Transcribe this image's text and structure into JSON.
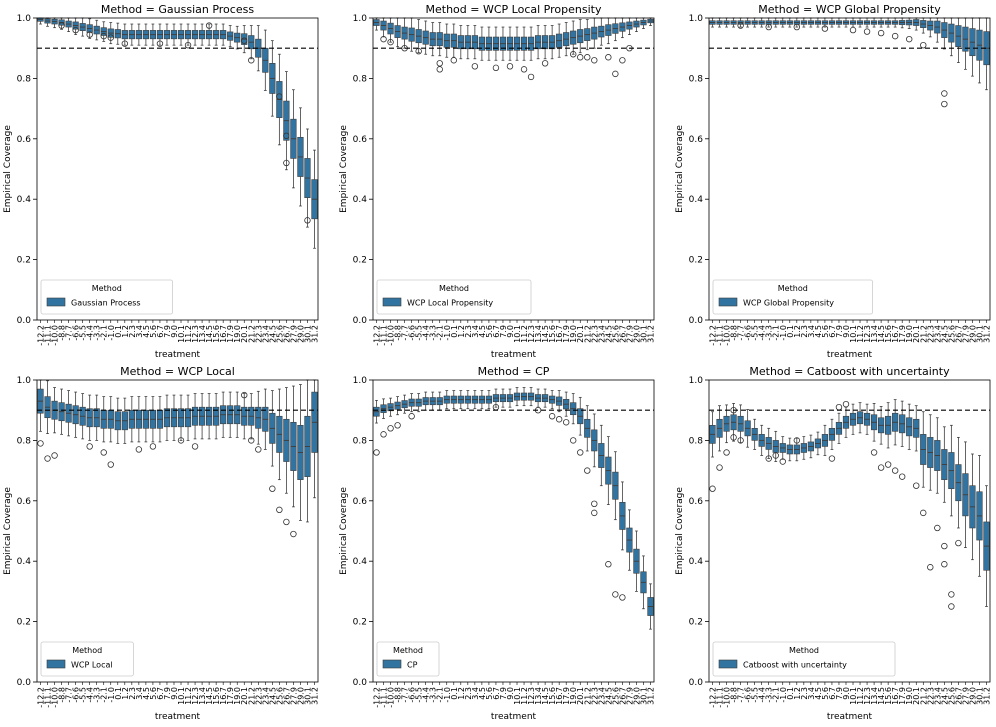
{
  "figure": {
    "colors": {
      "box": "#3274a1",
      "edge": "#3d3d3d",
      "ref_line": "#000000"
    }
  },
  "chart_data": [
    {
      "type": "boxplot",
      "title": "Method = Gaussian Process",
      "xlabel": "treatment",
      "ylabel": "Empirical Coverage",
      "ylim": [
        0.0,
        1.0
      ],
      "yticks": [
        "0.0",
        "0.2",
        "0.4",
        "0.6",
        "0.8",
        "1.0"
      ],
      "ref_line": 0.9,
      "legend": {
        "title": "Method",
        "label": "Gaussian Process",
        "loc": "lower left"
      },
      "categories": [
        "-12.2",
        "-11.1",
        "-10.0",
        "-8.8",
        "-7.7",
        "-6.6",
        "-5.5",
        "-4.4",
        "-3.3",
        "-2.1",
        "-1.0",
        "0.1",
        "1.2",
        "2.3",
        "3.4",
        "4.5",
        "5.6",
        "6.7",
        "7.9",
        "9.0",
        "10.1",
        "11.2",
        "12.3",
        "13.4",
        "14.5",
        "15.6",
        "16.7",
        "17.9",
        "19.0",
        "20.1",
        "21.2",
        "22.3",
        "23.4",
        "24.5",
        "25.6",
        "26.7",
        "27.9",
        "29.0",
        "30.1",
        "31.2"
      ],
      "medians": [
        0.995,
        0.99,
        0.988,
        0.985,
        0.98,
        0.975,
        0.97,
        0.965,
        0.96,
        0.955,
        0.95,
        0.948,
        0.945,
        0.945,
        0.945,
        0.945,
        0.945,
        0.945,
        0.945,
        0.945,
        0.945,
        0.945,
        0.945,
        0.945,
        0.945,
        0.945,
        0.945,
        0.94,
        0.935,
        0.93,
        0.92,
        0.9,
        0.86,
        0.8,
        0.73,
        0.66,
        0.6,
        0.54,
        0.47,
        0.4
      ],
      "spreads": [
        0.006,
        0.007,
        0.008,
        0.009,
        0.01,
        0.012,
        0.012,
        0.013,
        0.013,
        0.013,
        0.014,
        0.014,
        0.014,
        0.014,
        0.014,
        0.014,
        0.014,
        0.014,
        0.014,
        0.014,
        0.014,
        0.014,
        0.014,
        0.014,
        0.014,
        0.014,
        0.014,
        0.014,
        0.015,
        0.018,
        0.022,
        0.03,
        0.04,
        0.05,
        0.06,
        0.065,
        0.065,
        0.065,
        0.065,
        0.065
      ],
      "outliers": [
        [
          3,
          0.975
        ],
        [
          5,
          0.96
        ],
        [
          7,
          0.945
        ],
        [
          9,
          0.94
        ],
        [
          10,
          0.935
        ],
        [
          12,
          0.915
        ],
        [
          17,
          0.915
        ],
        [
          21,
          0.91
        ],
        [
          24,
          0.975
        ],
        [
          29,
          0.925
        ],
        [
          30,
          0.86
        ],
        [
          34,
          0.74
        ],
        [
          35,
          0.61
        ],
        [
          35,
          0.52
        ],
        [
          38,
          0.33
        ]
      ]
    },
    {
      "type": "boxplot",
      "title": "Method = WCP Local Propensity",
      "xlabel": "treatment",
      "ylabel": "Empirical Coverage",
      "ylim": [
        0.0,
        1.0
      ],
      "yticks": [
        "0.0",
        "0.2",
        "0.4",
        "0.6",
        "0.8",
        "1.0"
      ],
      "ref_line": 0.9,
      "legend": {
        "title": "Method",
        "label": "WCP Local Propensity",
        "loc": "lower left"
      },
      "categories": [
        "-12.2",
        "-11.1",
        "-10.0",
        "-8.8",
        "-7.7",
        "-6.6",
        "-5.5",
        "-4.4",
        "-3.3",
        "-2.1",
        "-1.0",
        "0.1",
        "1.2",
        "2.3",
        "3.4",
        "4.5",
        "5.6",
        "6.7",
        "7.9",
        "9.0",
        "10.1",
        "11.2",
        "12.3",
        "13.4",
        "14.5",
        "15.6",
        "16.7",
        "17.9",
        "19.0",
        "20.1",
        "21.2",
        "22.3",
        "23.4",
        "24.5",
        "25.6",
        "26.7",
        "27.9",
        "29.0",
        "30.1",
        "31.2"
      ],
      "medians": [
        0.985,
        0.975,
        0.965,
        0.955,
        0.95,
        0.945,
        0.94,
        0.935,
        0.93,
        0.93,
        0.925,
        0.925,
        0.92,
        0.92,
        0.92,
        0.915,
        0.915,
        0.915,
        0.915,
        0.915,
        0.915,
        0.915,
        0.915,
        0.92,
        0.92,
        0.92,
        0.925,
        0.93,
        0.935,
        0.94,
        0.945,
        0.95,
        0.955,
        0.96,
        0.965,
        0.97,
        0.975,
        0.98,
        0.985,
        0.99
      ],
      "spreads": [
        0.01,
        0.015,
        0.018,
        0.02,
        0.02,
        0.022,
        0.022,
        0.022,
        0.022,
        0.022,
        0.022,
        0.022,
        0.022,
        0.022,
        0.022,
        0.022,
        0.022,
        0.022,
        0.022,
        0.022,
        0.022,
        0.022,
        0.022,
        0.022,
        0.022,
        0.022,
        0.022,
        0.022,
        0.022,
        0.022,
        0.02,
        0.02,
        0.018,
        0.018,
        0.016,
        0.014,
        0.012,
        0.01,
        0.008,
        0.006
      ],
      "outliers": [
        [
          1,
          0.93
        ],
        [
          2,
          0.92
        ],
        [
          4,
          0.9
        ],
        [
          6,
          0.89
        ],
        [
          9,
          0.85
        ],
        [
          9,
          0.83
        ],
        [
          11,
          0.86
        ],
        [
          14,
          0.84
        ],
        [
          17,
          0.835
        ],
        [
          19,
          0.84
        ],
        [
          21,
          0.83
        ],
        [
          22,
          0.805
        ],
        [
          24,
          0.85
        ],
        [
          28,
          0.88
        ],
        [
          29,
          0.87
        ],
        [
          30,
          0.87
        ],
        [
          31,
          0.86
        ],
        [
          33,
          0.87
        ],
        [
          34,
          0.815
        ],
        [
          35,
          0.86
        ],
        [
          36,
          0.9
        ]
      ]
    },
    {
      "type": "boxplot",
      "title": "Method = WCP Global Propensity",
      "xlabel": "treatment",
      "ylabel": "Empirical Coverage",
      "ylim": [
        0.0,
        1.0
      ],
      "yticks": [
        "0.0",
        "0.2",
        "0.4",
        "0.6",
        "0.8",
        "1.0"
      ],
      "ref_line": 0.9,
      "legend": {
        "title": "Method",
        "label": "WCP Global Propensity",
        "loc": "lower left"
      },
      "categories": [
        "-12.2",
        "-11.1",
        "-10.0",
        "-8.8",
        "-7.7",
        "-6.6",
        "-5.5",
        "-4.4",
        "-3.3",
        "-2.1",
        "-1.0",
        "0.1",
        "1.2",
        "2.3",
        "3.4",
        "4.5",
        "5.6",
        "6.7",
        "7.9",
        "9.0",
        "10.1",
        "11.2",
        "12.3",
        "13.4",
        "14.5",
        "15.6",
        "16.7",
        "17.9",
        "19.0",
        "20.1",
        "21.2",
        "22.3",
        "23.4",
        "24.5",
        "25.6",
        "26.7",
        "27.9",
        "29.0",
        "30.1",
        "31.2"
      ],
      "medians": [
        0.985,
        0.985,
        0.985,
        0.985,
        0.985,
        0.985,
        0.985,
        0.985,
        0.985,
        0.985,
        0.985,
        0.985,
        0.985,
        0.985,
        0.985,
        0.985,
        0.985,
        0.985,
        0.985,
        0.985,
        0.985,
        0.985,
        0.985,
        0.985,
        0.985,
        0.985,
        0.985,
        0.985,
        0.985,
        0.985,
        0.98,
        0.975,
        0.97,
        0.96,
        0.95,
        0.94,
        0.93,
        0.92,
        0.91,
        0.9
      ],
      "spreads": [
        0.006,
        0.006,
        0.006,
        0.006,
        0.006,
        0.006,
        0.006,
        0.006,
        0.006,
        0.006,
        0.006,
        0.006,
        0.006,
        0.006,
        0.006,
        0.006,
        0.006,
        0.006,
        0.006,
        0.006,
        0.006,
        0.006,
        0.006,
        0.006,
        0.006,
        0.006,
        0.006,
        0.007,
        0.008,
        0.01,
        0.012,
        0.015,
        0.02,
        0.025,
        0.03,
        0.035,
        0.04,
        0.045,
        0.05,
        0.055
      ],
      "outliers": [
        [
          4,
          0.975
        ],
        [
          8,
          0.97
        ],
        [
          12,
          0.97
        ],
        [
          16,
          0.965
        ],
        [
          20,
          0.96
        ],
        [
          22,
          0.955
        ],
        [
          24,
          0.95
        ],
        [
          26,
          0.94
        ],
        [
          28,
          0.93
        ],
        [
          30,
          0.91
        ],
        [
          33,
          0.75
        ],
        [
          33,
          0.715
        ]
      ]
    },
    {
      "type": "boxplot",
      "title": "Method = WCP Local",
      "xlabel": "treatment",
      "ylabel": "Empirical Coverage",
      "ylim": [
        0.0,
        1.0
      ],
      "yticks": [
        "0.0",
        "0.2",
        "0.4",
        "0.6",
        "0.8",
        "1.0"
      ],
      "ref_line": 0.9,
      "legend": {
        "title": "Method",
        "label": "WCP Local",
        "loc": "lower left"
      },
      "categories": [
        "-12.2",
        "-11.1",
        "-10.0",
        "-8.8",
        "-7.7",
        "-6.6",
        "-5.5",
        "-4.4",
        "-3.3",
        "-2.1",
        "-1.0",
        "0.1",
        "1.2",
        "2.3",
        "3.4",
        "4.5",
        "5.6",
        "6.7",
        "7.9",
        "9.0",
        "10.1",
        "11.2",
        "12.3",
        "13.4",
        "14.5",
        "15.6",
        "16.7",
        "17.9",
        "19.0",
        "20.1",
        "21.2",
        "22.3",
        "23.4",
        "24.5",
        "25.6",
        "26.7",
        "27.9",
        "29.0",
        "30.1",
        "31.2"
      ],
      "medians": [
        0.93,
        0.91,
        0.9,
        0.895,
        0.89,
        0.885,
        0.88,
        0.875,
        0.875,
        0.87,
        0.87,
        0.865,
        0.865,
        0.87,
        0.87,
        0.87,
        0.87,
        0.87,
        0.875,
        0.875,
        0.875,
        0.875,
        0.88,
        0.88,
        0.88,
        0.88,
        0.885,
        0.885,
        0.885,
        0.88,
        0.88,
        0.875,
        0.87,
        0.84,
        0.82,
        0.8,
        0.78,
        0.76,
        0.78,
        0.86
      ],
      "spreads": [
        0.04,
        0.035,
        0.03,
        0.03,
        0.03,
        0.03,
        0.03,
        0.03,
        0.03,
        0.03,
        0.03,
        0.03,
        0.03,
        0.03,
        0.03,
        0.03,
        0.03,
        0.03,
        0.03,
        0.03,
        0.03,
        0.03,
        0.03,
        0.03,
        0.03,
        0.03,
        0.03,
        0.03,
        0.03,
        0.03,
        0.03,
        0.035,
        0.04,
        0.05,
        0.06,
        0.07,
        0.08,
        0.09,
        0.1,
        0.1
      ],
      "outliers": [
        [
          0,
          0.79
        ],
        [
          1,
          0.74
        ],
        [
          2,
          0.75
        ],
        [
          7,
          0.78
        ],
        [
          9,
          0.76
        ],
        [
          10,
          0.72
        ],
        [
          14,
          0.77
        ],
        [
          16,
          0.78
        ],
        [
          20,
          0.8
        ],
        [
          22,
          0.78
        ],
        [
          29,
          0.95
        ],
        [
          30,
          0.8
        ],
        [
          31,
          0.77
        ],
        [
          33,
          0.64
        ],
        [
          34,
          0.57
        ],
        [
          35,
          0.53
        ],
        [
          36,
          0.49
        ]
      ]
    },
    {
      "type": "boxplot",
      "title": "Method = CP",
      "xlabel": "treatment",
      "ylabel": "Empirical Coverage",
      "ylim": [
        0.0,
        1.0
      ],
      "yticks": [
        "0.0",
        "0.2",
        "0.4",
        "0.6",
        "0.8",
        "1.0"
      ],
      "ref_line": 0.9,
      "legend": {
        "title": "Method",
        "label": "CP",
        "loc": "lower left"
      },
      "categories": [
        "-12.2",
        "-11.1",
        "-10.0",
        "-8.8",
        "-7.7",
        "-6.6",
        "-5.5",
        "-4.4",
        "-3.3",
        "-2.1",
        "-1.0",
        "0.1",
        "1.2",
        "2.3",
        "3.4",
        "4.5",
        "5.6",
        "6.7",
        "7.9",
        "9.0",
        "10.1",
        "11.2",
        "12.3",
        "13.4",
        "14.5",
        "15.6",
        "16.7",
        "17.9",
        "19.0",
        "20.1",
        "21.2",
        "22.3",
        "23.4",
        "24.5",
        "25.6",
        "26.7",
        "27.9",
        "29.0",
        "30.1",
        "31.2"
      ],
      "medians": [
        0.895,
        0.905,
        0.91,
        0.915,
        0.92,
        0.925,
        0.925,
        0.93,
        0.93,
        0.93,
        0.935,
        0.935,
        0.935,
        0.935,
        0.935,
        0.935,
        0.935,
        0.94,
        0.94,
        0.94,
        0.945,
        0.945,
        0.945,
        0.94,
        0.94,
        0.935,
        0.93,
        0.92,
        0.905,
        0.88,
        0.84,
        0.8,
        0.75,
        0.7,
        0.65,
        0.55,
        0.47,
        0.4,
        0.33,
        0.25
      ],
      "spreads": [
        0.015,
        0.013,
        0.012,
        0.012,
        0.012,
        0.012,
        0.012,
        0.012,
        0.012,
        0.012,
        0.012,
        0.012,
        0.012,
        0.012,
        0.012,
        0.012,
        0.012,
        0.012,
        0.012,
        0.012,
        0.012,
        0.012,
        0.012,
        0.012,
        0.012,
        0.012,
        0.014,
        0.016,
        0.02,
        0.025,
        0.03,
        0.035,
        0.04,
        0.045,
        0.045,
        0.045,
        0.04,
        0.04,
        0.035,
        0.03
      ],
      "outliers": [
        [
          0,
          0.76
        ],
        [
          1,
          0.82
        ],
        [
          2,
          0.84
        ],
        [
          3,
          0.85
        ],
        [
          5,
          0.88
        ],
        [
          17,
          0.91
        ],
        [
          23,
          0.9
        ],
        [
          25,
          0.88
        ],
        [
          26,
          0.87
        ],
        [
          27,
          0.86
        ],
        [
          28,
          0.8
        ],
        [
          29,
          0.76
        ],
        [
          30,
          0.7
        ],
        [
          31,
          0.56
        ],
        [
          33,
          0.39
        ],
        [
          34,
          0.29
        ],
        [
          35,
          0.28
        ],
        [
          31,
          0.59
        ]
      ]
    },
    {
      "type": "boxplot",
      "title": "Method = Catboost with uncertainty",
      "xlabel": "treatment",
      "ylabel": "Empirical Coverage",
      "ylim": [
        0.0,
        1.0
      ],
      "yticks": [
        "0.0",
        "0.2",
        "0.4",
        "0.6",
        "0.8",
        "1.0"
      ],
      "ref_line": 0.9,
      "legend": {
        "title": "Method",
        "label": "Catboost with uncertainty",
        "loc": "lower left"
      },
      "categories": [
        "-12.2",
        "-11.1",
        "-10.0",
        "-8.8",
        "-7.7",
        "-6.6",
        "-5.5",
        "-4.4",
        "-3.3",
        "-2.1",
        "-1.0",
        "0.1",
        "1.2",
        "2.3",
        "3.4",
        "4.5",
        "5.6",
        "6.7",
        "7.9",
        "9.0",
        "10.1",
        "11.2",
        "12.3",
        "13.4",
        "14.5",
        "15.6",
        "16.7",
        "17.9",
        "19.0",
        "20.1",
        "21.2",
        "22.3",
        "23.4",
        "24.5",
        "25.6",
        "26.7",
        "27.9",
        "29.0",
        "30.1",
        "31.2"
      ],
      "medians": [
        0.82,
        0.84,
        0.855,
        0.86,
        0.855,
        0.84,
        0.82,
        0.8,
        0.79,
        0.78,
        0.775,
        0.77,
        0.77,
        0.775,
        0.78,
        0.79,
        0.8,
        0.82,
        0.84,
        0.86,
        0.87,
        0.875,
        0.87,
        0.86,
        0.85,
        0.85,
        0.86,
        0.855,
        0.845,
        0.84,
        0.77,
        0.76,
        0.75,
        0.72,
        0.7,
        0.66,
        0.62,
        0.58,
        0.55,
        0.45
      ],
      "spreads": [
        0.03,
        0.03,
        0.025,
        0.025,
        0.025,
        0.025,
        0.02,
        0.02,
        0.02,
        0.02,
        0.015,
        0.015,
        0.015,
        0.015,
        0.015,
        0.015,
        0.02,
        0.02,
        0.02,
        0.02,
        0.02,
        0.02,
        0.02,
        0.025,
        0.025,
        0.03,
        0.03,
        0.03,
        0.03,
        0.03,
        0.05,
        0.05,
        0.05,
        0.05,
        0.06,
        0.06,
        0.07,
        0.07,
        0.08,
        0.08
      ],
      "outliers": [
        [
          0,
          0.64
        ],
        [
          1,
          0.71
        ],
        [
          2,
          0.76
        ],
        [
          3,
          0.81
        ],
        [
          3,
          0.9
        ],
        [
          4,
          0.8
        ],
        [
          8,
          0.74
        ],
        [
          9,
          0.75
        ],
        [
          10,
          0.73
        ],
        [
          12,
          0.8
        ],
        [
          17,
          0.74
        ],
        [
          18,
          0.91
        ],
        [
          19,
          0.92
        ],
        [
          23,
          0.76
        ],
        [
          24,
          0.71
        ],
        [
          25,
          0.72
        ],
        [
          26,
          0.7
        ],
        [
          27,
          0.68
        ],
        [
          29,
          0.65
        ],
        [
          30,
          0.56
        ],
        [
          31,
          0.38
        ],
        [
          32,
          0.51
        ],
        [
          33,
          0.45
        ],
        [
          33,
          0.39
        ],
        [
          34,
          0.29
        ],
        [
          34,
          0.25
        ],
        [
          35,
          0.46
        ]
      ]
    }
  ]
}
